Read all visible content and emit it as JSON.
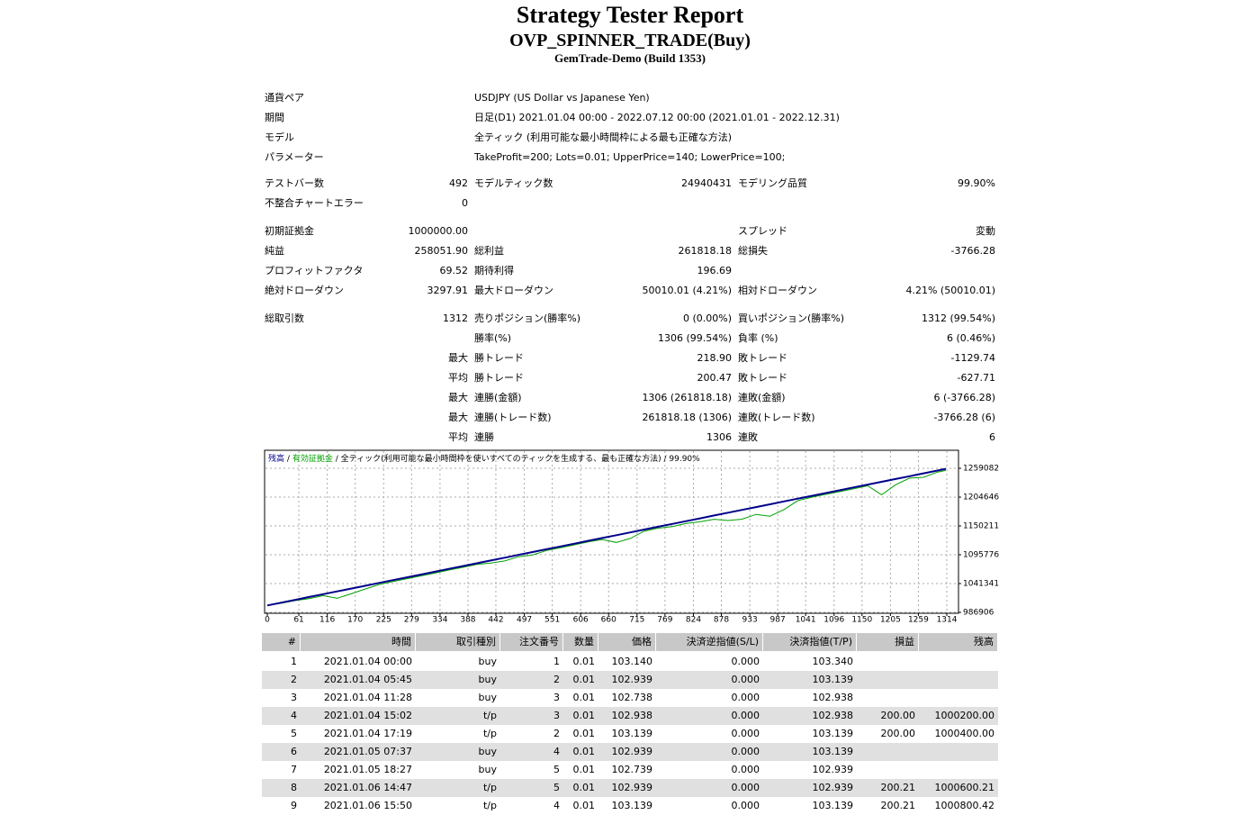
{
  "header": {
    "title": "Strategy Tester Report",
    "subtitle": "OVP_SPINNER_TRADE(Buy)",
    "server": "GemTrade-Demo (Build 1353)"
  },
  "info": [
    [
      "通貨ペア",
      "USDJPY (US Dollar vs Japanese Yen)"
    ],
    [
      "期間",
      "日足(D1) 2021.01.04 00:00 - 2022.07.12 00:00 (2021.01.01 - 2022.12.31)"
    ],
    [
      "モデル",
      "全ティック (利用可能な最小時間枠による最も正確な方法)"
    ],
    [
      "パラメーター",
      "TakeProfit=200; Lots=0.01; UpperPrice=140; LowerPrice=100;"
    ]
  ],
  "summary": [
    [
      [
        "テストバー数",
        "492",
        "モデルティック数",
        "24940431",
        "モデリング品質",
        "99.90%"
      ],
      [
        "不整合チャートエラー",
        "0"
      ]
    ],
    [
      [
        "初期証拠金",
        "1000000.00",
        null,
        null,
        "スプレッド",
        "変動"
      ],
      [
        "純益",
        "258051.90",
        "総利益",
        "261818.18",
        "総損失",
        "-3766.28"
      ],
      [
        "プロフィットファクタ",
        "69.52",
        "期待利得",
        "196.69"
      ],
      [
        "絶対ドローダウン",
        "3297.91",
        "最大ドローダウン",
        "50010.01 (4.21%)",
        "相対ドローダウン",
        "4.21% (50010.01)"
      ]
    ],
    [
      [
        "総取引数",
        "1312",
        "売りポジション(勝率%)",
        "0 (0.00%)",
        "買いポジション(勝率%)",
        "1312 (99.54%)"
      ],
      [
        null,
        null,
        "勝率(%)",
        "1306 (99.54%)",
        "負率 (%)",
        "6 (0.46%)"
      ],
      [
        null,
        "最大",
        "勝トレード",
        "218.90",
        "敗トレード",
        "-1129.74"
      ],
      [
        null,
        "平均",
        "勝トレード",
        "200.47",
        "敗トレード",
        "-627.71"
      ],
      [
        null,
        "最大",
        "連勝(金額)",
        "1306 (261818.18)",
        "連敗(金額)",
        "6 (-3766.28)"
      ],
      [
        null,
        "最大",
        "連勝(トレード数)",
        "261818.18 (1306)",
        "連敗(トレード数)",
        "-3766.28 (6)"
      ],
      [
        null,
        "平均",
        "連勝",
        "1306",
        "連敗",
        "6"
      ]
    ]
  ],
  "chart_data": {
    "type": "line",
    "legend_separator": "/",
    "legend_note": "全ティック(利用可能な最小時間枠を使いすべてのティックを生成する、最も正確な方法)",
    "legend_quality": "99.90%",
    "x": [
      0,
      27,
      54,
      81,
      108,
      135,
      162,
      189,
      216,
      243,
      270,
      297,
      324,
      351,
      378,
      405,
      432,
      459,
      486,
      513,
      540,
      567,
      594,
      621,
      648,
      675,
      702,
      729,
      756,
      783,
      810,
      837,
      864,
      891,
      918,
      945,
      972,
      999,
      1026,
      1053,
      1080,
      1107,
      1134,
      1161,
      1188,
      1215,
      1242,
      1269,
      1296,
      1312
    ],
    "series": [
      {
        "name": "残高",
        "color": "#00008b",
        "values": [
          1000000,
          1005308,
          1010616,
          1015925,
          1021233,
          1026541,
          1031849,
          1037157,
          1042466,
          1047774,
          1053082,
          1058390,
          1063698,
          1069007,
          1074315,
          1079623,
          1084931,
          1090239,
          1095548,
          1100856,
          1106164,
          1111472,
          1116780,
          1122089,
          1127397,
          1132705,
          1138013,
          1143321,
          1148630,
          1153938,
          1159246,
          1164554,
          1169862,
          1175171,
          1180479,
          1185787,
          1191095,
          1196403,
          1201712,
          1207020,
          1212328,
          1217636,
          1222944,
          1228253,
          1233561,
          1238869,
          1244177,
          1249485,
          1254794,
          1258052
        ]
      },
      {
        "name": "有効証拠金",
        "color": "#00a000",
        "values": [
          1000000,
          1004100,
          1009200,
          1012800,
          1018500,
          1013500,
          1022000,
          1031000,
          1039500,
          1045000,
          1050500,
          1055800,
          1061000,
          1066800,
          1072000,
          1077500,
          1080200,
          1084000,
          1092000,
          1095500,
          1103800,
          1109000,
          1114500,
          1120200,
          1124500,
          1119000,
          1126500,
          1140500,
          1146000,
          1149000,
          1155000,
          1158000,
          1162800,
          1160500,
          1163000,
          1172000,
          1168500,
          1181000,
          1198000,
          1204500,
          1210000,
          1215000,
          1220500,
          1226000,
          1209000,
          1228000,
          1240500,
          1242000,
          1252000,
          1255000
        ]
      }
    ],
    "xlim": [
      0,
      1333
    ],
    "ylim": [
      986906,
      1291400
    ],
    "xticks": [
      0,
      61,
      116,
      170,
      225,
      279,
      334,
      388,
      442,
      497,
      551,
      606,
      660,
      715,
      769,
      824,
      878,
      933,
      987,
      1041,
      1096,
      1150,
      1205,
      1259,
      1314
    ],
    "yticks": [
      986906,
      1041341,
      1095776,
      1150211,
      1204646,
      1259082
    ],
    "grid": true
  },
  "trades": {
    "headers": [
      "#",
      "時間",
      "取引種別",
      "注文番号",
      "数量",
      "価格",
      "決済逆指値(S/L)",
      "決済指値(T/P)",
      "損益",
      "残高"
    ],
    "rows": [
      [
        "1",
        "2021.01.04 00:00",
        "buy",
        "1",
        "0.01",
        "103.140",
        "0.000",
        "103.340"
      ],
      [
        "2",
        "2021.01.04 05:45",
        "buy",
        "2",
        "0.01",
        "102.939",
        "0.000",
        "103.139"
      ],
      [
        "3",
        "2021.01.04 11:28",
        "buy",
        "3",
        "0.01",
        "102.738",
        "0.000",
        "102.938"
      ],
      [
        "4",
        "2021.01.04 15:02",
        "t/p",
        "3",
        "0.01",
        "102.938",
        "0.000",
        "102.938",
        "200.00",
        "1000200.00"
      ],
      [
        "5",
        "2021.01.04 17:19",
        "t/p",
        "2",
        "0.01",
        "103.139",
        "0.000",
        "103.139",
        "200.00",
        "1000400.00"
      ],
      [
        "6",
        "2021.01.05 07:37",
        "buy",
        "4",
        "0.01",
        "102.939",
        "0.000",
        "103.139"
      ],
      [
        "7",
        "2021.01.05 18:27",
        "buy",
        "5",
        "0.01",
        "102.739",
        "0.000",
        "102.939"
      ],
      [
        "8",
        "2021.01.06 14:47",
        "t/p",
        "5",
        "0.01",
        "102.939",
        "0.000",
        "102.939",
        "200.21",
        "1000600.21"
      ],
      [
        "9",
        "2021.01.06 15:50",
        "t/p",
        "4",
        "0.01",
        "103.139",
        "0.000",
        "103.139",
        "200.21",
        "1000800.42"
      ]
    ]
  }
}
